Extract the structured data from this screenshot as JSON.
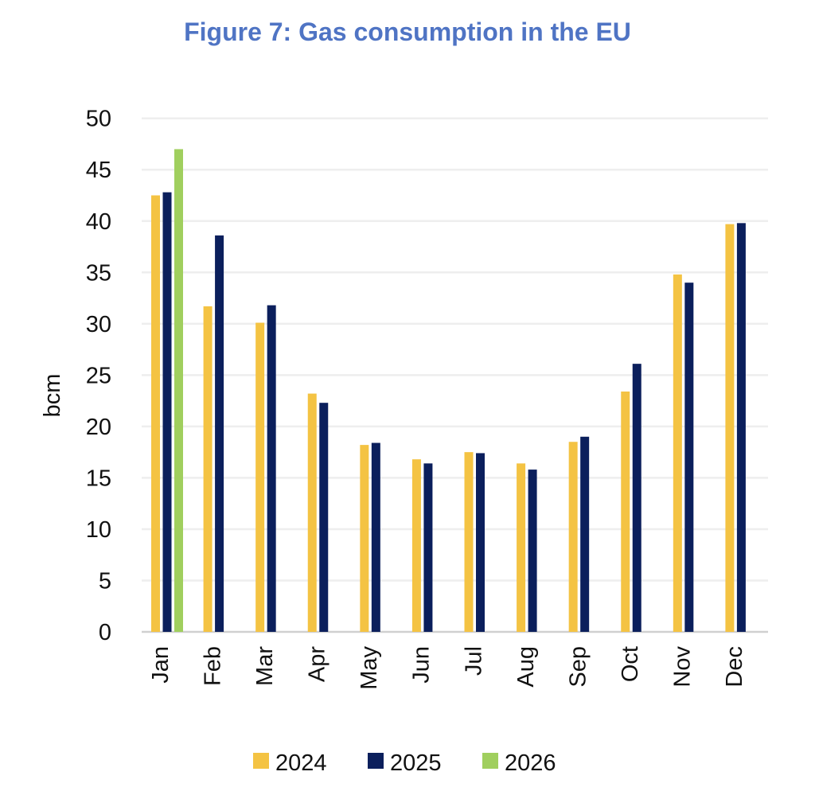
{
  "chart_data": {
    "type": "bar",
    "title": "Figure 7: Gas consumption in the EU",
    "xlabel": "",
    "ylabel": "bcm",
    "ylim": [
      0,
      50
    ],
    "yticks": [
      0,
      5,
      10,
      15,
      20,
      25,
      30,
      35,
      40,
      45,
      50
    ],
    "grid": true,
    "legend_position": "bottom",
    "categories": [
      "Jan",
      "Feb",
      "Mar",
      "Apr",
      "May",
      "Jun",
      "Jul",
      "Aug",
      "Sep",
      "Oct",
      "Nov",
      "Dec"
    ],
    "series": [
      {
        "name": "2024",
        "color": "#f4c343",
        "values": [
          42.5,
          31.7,
          30.1,
          23.2,
          18.2,
          16.8,
          17.5,
          16.4,
          18.5,
          23.4,
          34.8,
          39.7
        ]
      },
      {
        "name": "2025",
        "color": "#0b1f5c",
        "values": [
          42.8,
          38.6,
          31.8,
          22.3,
          18.4,
          16.4,
          17.4,
          15.8,
          19.0,
          26.1,
          34.0,
          39.8
        ]
      },
      {
        "name": "2026",
        "color": "#a0cf5e",
        "values": [
          47.0,
          null,
          null,
          null,
          null,
          null,
          null,
          null,
          null,
          null,
          null,
          null
        ]
      }
    ]
  }
}
